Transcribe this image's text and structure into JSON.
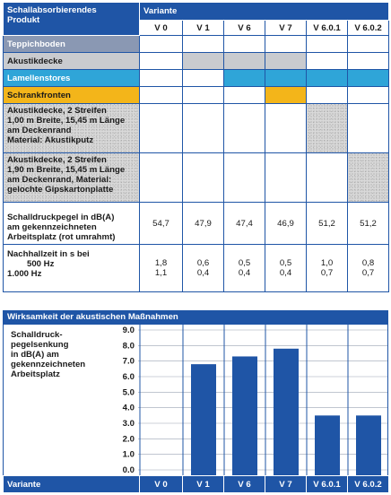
{
  "header": {
    "product_label": "Schallabsorbierendes Produkt",
    "variant_label": "Variante",
    "variants": [
      "V 0",
      "V 1",
      "V 6",
      "V 7",
      "V 6.0.1",
      "V 6.0.2"
    ]
  },
  "rows": {
    "teppichboden": "Teppichboden",
    "akustikdecke": "Akustikdecke",
    "lamellenstores": "Lamellenstores",
    "schrankfronten": "Schrankfronten",
    "akustik_a_l1": "Akustikdecke, 2 Streifen",
    "akustik_a_l2": "1,00 m Breite, 15,45 m Länge",
    "akustik_a_l3": "am Deckenrand",
    "akustik_a_l4": "Material: Akustikputz",
    "akustik_b_l1": "Akustikdecke, 2 Streifen",
    "akustik_b_l2": "1,90 m Breite, 15,45 m Länge",
    "akustik_b_l3": "am Deckenrand, Material:",
    "akustik_b_l4": "gelochte Gipskartonplatte",
    "schall_l1": "Schalldruckpegel in dB(A)",
    "schall_l2": "am gekennzeichneten",
    "schall_l3": "Arbeitsplatz (rot umrahmt)",
    "schall_values": [
      "54,7",
      "47,9",
      "47,4",
      "46,9",
      "51,2",
      "51,2"
    ],
    "nachhall_l1": "Nachhallzeit in s bei",
    "nachhall_500": "500 Hz",
    "nachhall_1000": "1.000 Hz",
    "nachhall_500_values": [
      "1,8",
      "0,6",
      "0,5",
      "0,5",
      "1,0",
      "0,8"
    ],
    "nachhall_1000_values": [
      "1,1",
      "0,4",
      "0,4",
      "0,4",
      "0,7",
      "0,7"
    ]
  },
  "section_title": "Wirksamkeit der akustischen Maßnahmen",
  "chart_data": {
    "type": "bar",
    "ylabel": "Schalldruck-pegelsenkung in dB(A) am gekennzeichneten Arbeitsplatz",
    "ylabel_lines": [
      "Schalldruck-",
      "pegelsenkung",
      "in dB(A) am",
      "gekennzeichneten",
      "Arbeitsplatz"
    ],
    "categories": [
      "V 0",
      "V 1",
      "V 6",
      "V 7",
      "V 6.0.1",
      "V 6.0.2"
    ],
    "values": [
      0,
      6.8,
      7.3,
      7.8,
      3.5,
      3.5
    ],
    "ylim": [
      0,
      9
    ],
    "yticks": [
      "0.0",
      "1.0",
      "2.0",
      "3.0",
      "4.0",
      "5.0",
      "6.0",
      "7.0",
      "8.0",
      "9.0"
    ],
    "xlabel": "Variante",
    "bar_color": "#1f55a6",
    "grid": true
  },
  "colors": {
    "blue": "#1f55a6",
    "gray": "#c9cbcf",
    "teal": "#2fa5d8",
    "gold": "#f3b51a"
  }
}
